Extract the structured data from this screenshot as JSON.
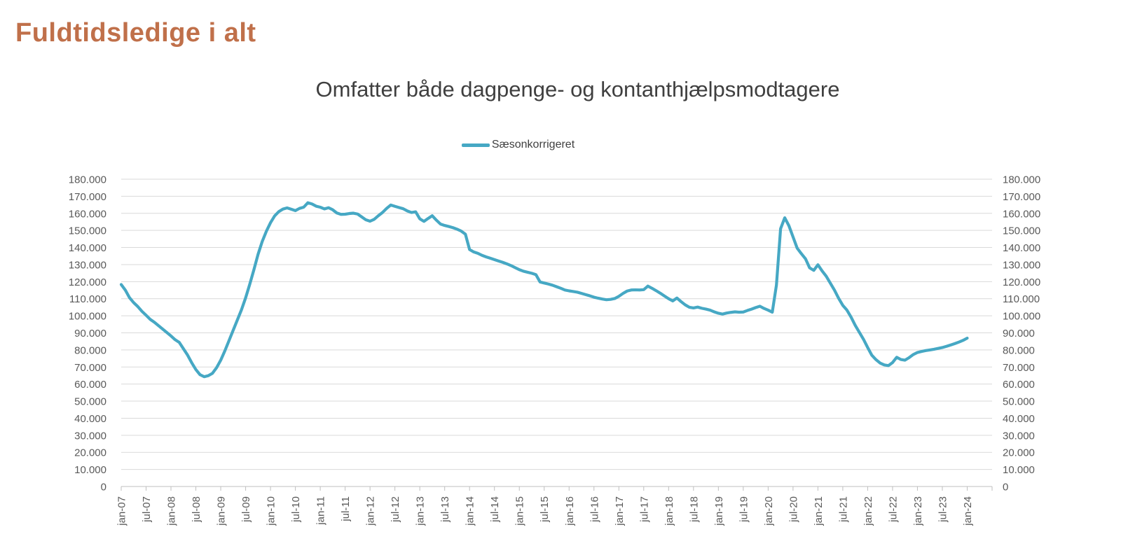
{
  "page_title": "Fuldtidsledige i alt",
  "colors": {
    "title": "#c0704a",
    "series_line": "#46a8c4",
    "gridline": "#d9d9d9",
    "axis": "#bfbfbf",
    "axis_text": "#595959",
    "subtitle_text": "#3f3f3f",
    "legend_text": "#404040"
  },
  "chart_data": {
    "type": "line",
    "title": "Omfatter både dagpenge- og kontanthjælpsmodtagere",
    "legend_position": "top-center",
    "grid": "horizontal",
    "x_frequency": "monthly",
    "x_range": [
      "jan-07",
      "jan-24"
    ],
    "x_tick_labels": [
      "jan-07",
      "jul-07",
      "jan-08",
      "jul-08",
      "jan-09",
      "jul-09",
      "jan-10",
      "jul-10",
      "jan-11",
      "jul-11",
      "jan-12",
      "jul-12",
      "jan-13",
      "jul-13",
      "jan-14",
      "jul-14",
      "jan-15",
      "jul-15",
      "jan-16",
      "jul-16",
      "jan-17",
      "jul-17",
      "jan-18",
      "jul-18",
      "jan-19",
      "jul-19",
      "jan-20",
      "jul-20",
      "jan-21",
      "jul-21",
      "jan-22",
      "jul-22",
      "jan-23",
      "jul-23",
      "jan-24"
    ],
    "ylim": [
      0,
      180000
    ],
    "y_ticks": [
      0,
      10000,
      20000,
      30000,
      40000,
      50000,
      60000,
      70000,
      80000,
      90000,
      100000,
      110000,
      120000,
      130000,
      140000,
      150000,
      160000,
      170000,
      180000
    ],
    "y_tick_labels": [
      "0",
      "10.000",
      "20.000",
      "30.000",
      "40.000",
      "50.000",
      "60.000",
      "70.000",
      "80.000",
      "90.000",
      "100.000",
      "110.000",
      "120.000",
      "130.000",
      "140.000",
      "150.000",
      "160.000",
      "170.000",
      "180.000"
    ],
    "y_axis_sides": [
      "left",
      "right"
    ],
    "series": [
      {
        "name": "Sæsonkorrigeret",
        "color": "#46a8c4",
        "values": [
          118300,
          115000,
          110600,
          107700,
          105400,
          102600,
          100300,
          97900,
          96200,
          94200,
          92200,
          90200,
          88200,
          86000,
          84400,
          80700,
          77000,
          72500,
          68500,
          65500,
          64300,
          64900,
          66300,
          69600,
          74000,
          79500,
          85500,
          91500,
          97500,
          103500,
          110500,
          118500,
          127000,
          136000,
          143500,
          149500,
          154500,
          158500,
          161000,
          162500,
          163200,
          162400,
          161600,
          162900,
          163600,
          166200,
          165500,
          164200,
          163600,
          162600,
          163300,
          162100,
          160200,
          159400,
          159500,
          159900,
          160100,
          159600,
          157900,
          156200,
          155400,
          156500,
          158600,
          160500,
          162900,
          164900,
          164100,
          163400,
          162700,
          161400,
          160500,
          160900,
          156800,
          155300,
          157000,
          158600,
          156000,
          153700,
          152900,
          152300,
          151600,
          150700,
          149600,
          147800,
          138800,
          137400,
          136600,
          135400,
          134500,
          133700,
          132900,
          132100,
          131300,
          130400,
          129400,
          128200,
          127000,
          126100,
          125500,
          124900,
          124100,
          119800,
          119200,
          118600,
          117900,
          117000,
          116100,
          115100,
          114600,
          114200,
          113800,
          113100,
          112400,
          111700,
          110900,
          110300,
          109800,
          109400,
          109600,
          110100,
          111400,
          113100,
          114500,
          115100,
          115200,
          115100,
          115300,
          117400,
          116100,
          114700,
          113200,
          111600,
          110000,
          108700,
          110400,
          108300,
          106400,
          105000,
          104600,
          105100,
          104400,
          103900,
          103300,
          102300,
          101500,
          101000,
          101600,
          102000,
          102300,
          102100,
          102200,
          103100,
          103900,
          104800,
          105600,
          104300,
          103300,
          102100,
          118000,
          151000,
          157400,
          152800,
          146200,
          139600,
          136400,
          133400,
          128100,
          126600,
          129900,
          126300,
          123200,
          119100,
          115000,
          110200,
          106100,
          103300,
          99200,
          94400,
          90300,
          86200,
          81400,
          76900,
          74300,
          72300,
          71200,
          70800,
          72600,
          75700,
          74400,
          74000,
          75500,
          77300,
          78500,
          79100,
          79600,
          80000,
          80400,
          80900,
          81400,
          82100,
          82900,
          83700,
          84600,
          85600,
          86900
        ]
      }
    ]
  }
}
